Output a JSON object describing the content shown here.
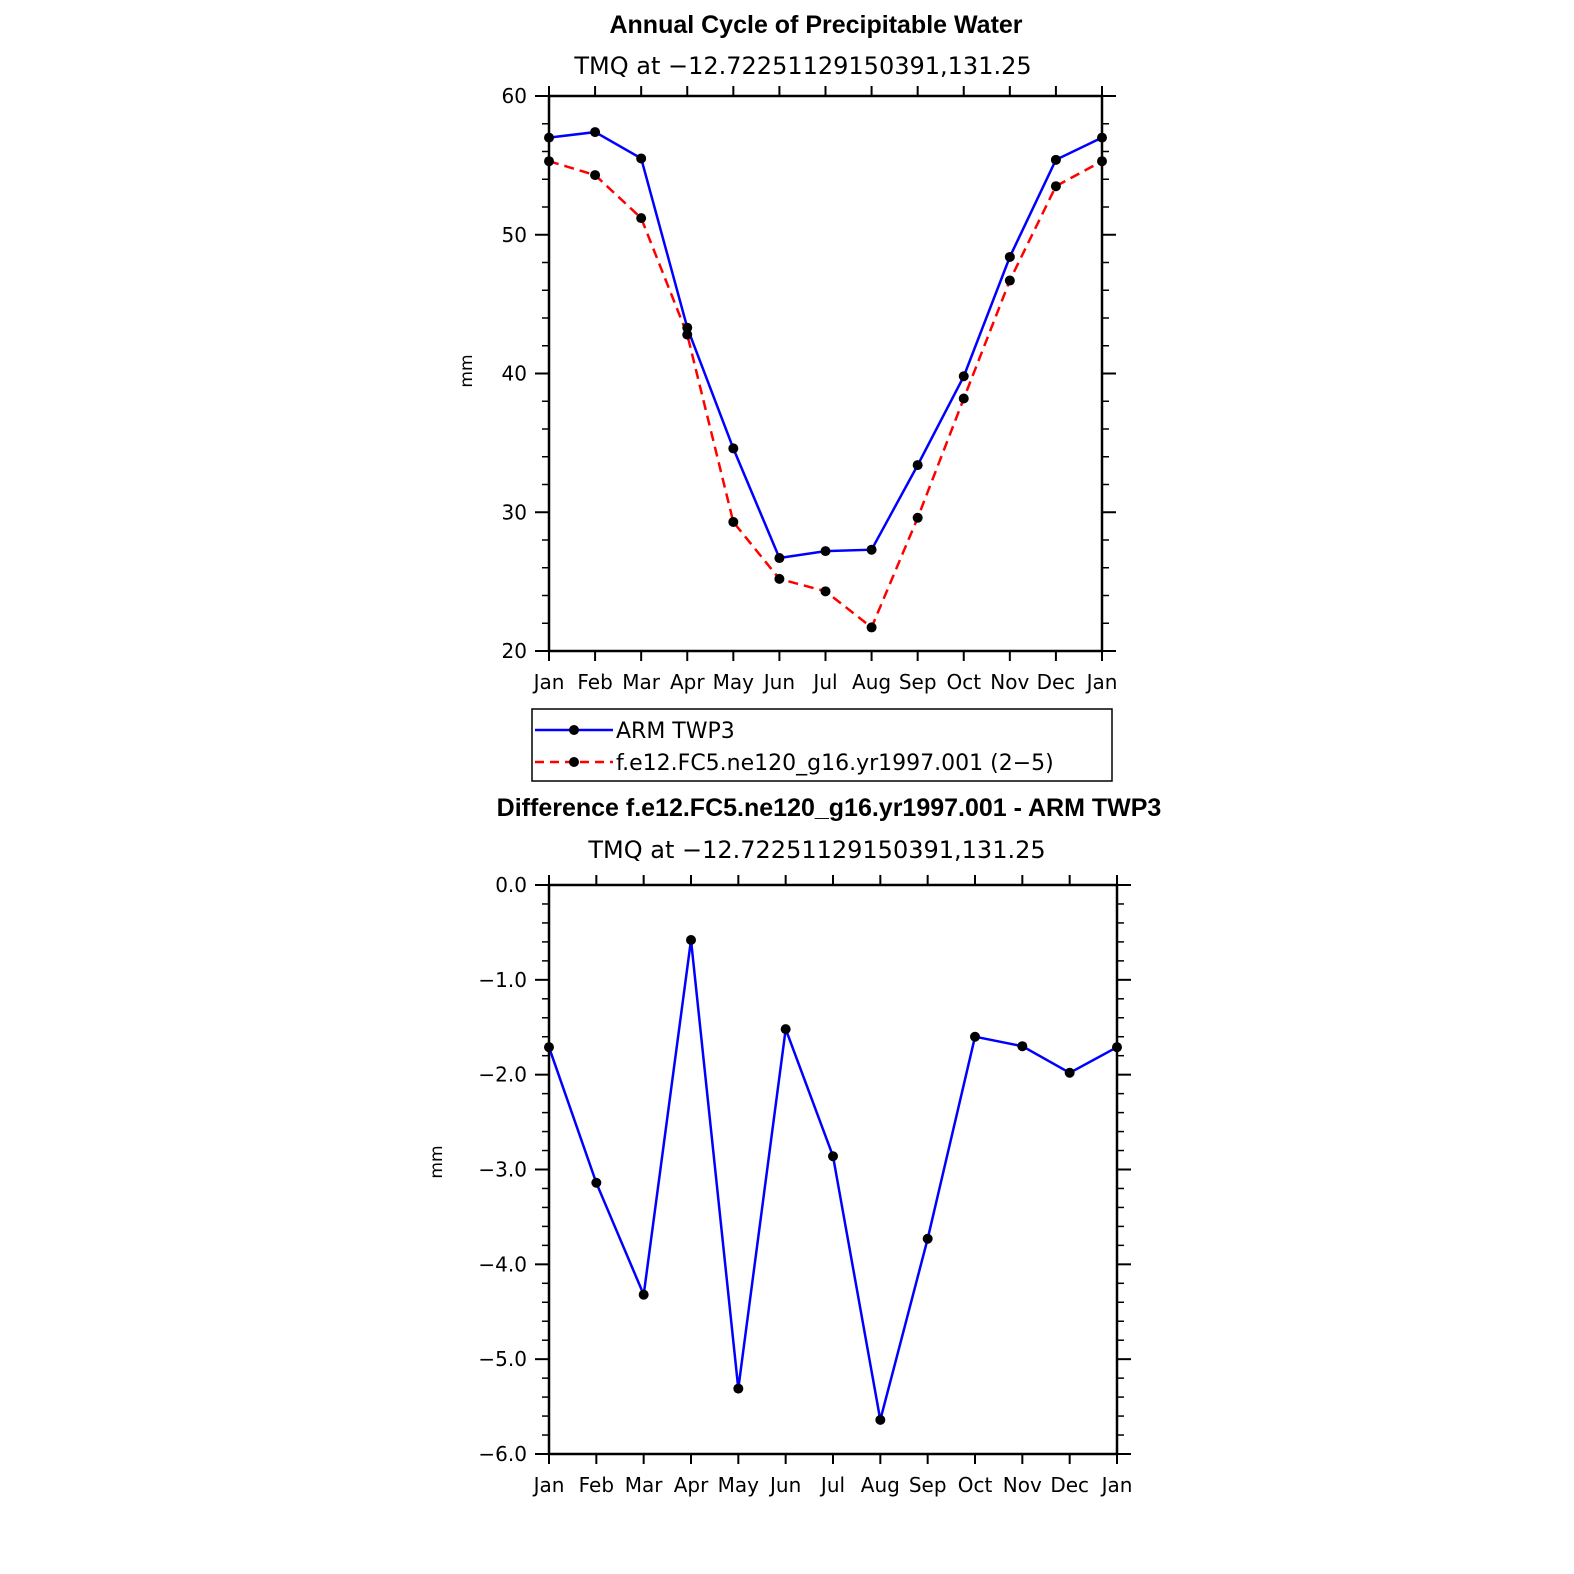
{
  "chart_data": [
    {
      "type": "line",
      "title": "Annual Cycle of Precipitable Water",
      "subtitle": "TMQ at −12.72251129150391,131.25",
      "xlabel": "",
      "ylabel": "mm",
      "categories": [
        "Jan",
        "Feb",
        "Mar",
        "Apr",
        "May",
        "Jun",
        "Jul",
        "Aug",
        "Sep",
        "Oct",
        "Nov",
        "Dec",
        "Jan"
      ],
      "ylim": [
        20,
        60
      ],
      "y_ticks": [
        "20",
        "30",
        "40",
        "50",
        "60"
      ],
      "series": [
        {
          "name": "ARM TWP3",
          "color": "#0000ff",
          "dash": "solid",
          "values": [
            57.0,
            57.4,
            55.5,
            43.3,
            34.6,
            26.7,
            27.2,
            27.3,
            33.4,
            39.8,
            48.4,
            55.4,
            57.0
          ]
        },
        {
          "name": "f.e12.FC5.ne120_g16.yr1997.001 (2−5)",
          "color": "#ff0000",
          "dash": "dashed",
          "values": [
            55.3,
            54.3,
            51.2,
            42.8,
            29.3,
            25.2,
            24.3,
            21.7,
            29.6,
            38.2,
            46.7,
            53.5,
            55.3
          ]
        }
      ],
      "legend": "below"
    },
    {
      "type": "line",
      "title": "Difference f.e12.FC5.ne120_g16.yr1997.001 - ARM TWP3",
      "subtitle": "TMQ at −12.72251129150391,131.25",
      "xlabel": "",
      "ylabel": "mm",
      "categories": [
        "Jan",
        "Feb",
        "Mar",
        "Apr",
        "May",
        "Jun",
        "Jul",
        "Aug",
        "Sep",
        "Oct",
        "Nov",
        "Dec",
        "Jan"
      ],
      "ylim": [
        -6.0,
        0.0
      ],
      "y_ticks": [
        "0.0",
        "−1.0",
        "−2.0",
        "−3.0",
        "−4.0",
        "−5.0",
        "−6.0"
      ],
      "series": [
        {
          "color": "#0000ff",
          "dash": "solid",
          "values": [
            -1.71,
            -3.14,
            -4.32,
            -0.58,
            -5.31,
            -1.52,
            -2.86,
            -5.64,
            -3.73,
            -1.6,
            -1.7,
            -1.98,
            -1.71
          ]
        }
      ]
    }
  ]
}
